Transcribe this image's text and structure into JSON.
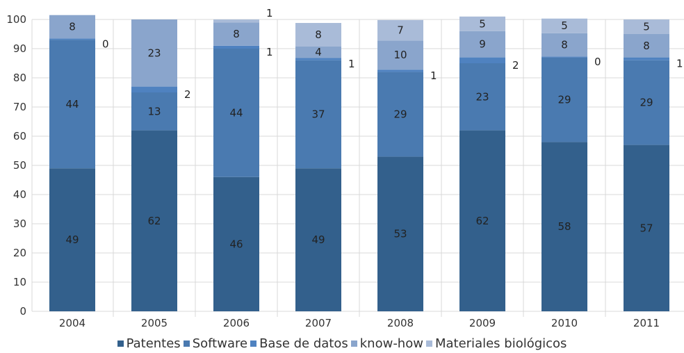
{
  "chart_data": {
    "type": "bar",
    "stacked": true,
    "categories": [
      "2004",
      "2005",
      "2006",
      "2007",
      "2008",
      "2009",
      "2010",
      "2011"
    ],
    "series": [
      {
        "name": "Patentes",
        "color": "#33608c",
        "values": [
          49,
          62,
          46,
          49,
          53,
          62,
          58,
          57
        ],
        "labels": [
          "49",
          "62",
          "46",
          "49",
          "53",
          "62",
          "58",
          "57"
        ]
      },
      {
        "name": "Software",
        "color": "#4a7ab0",
        "values": [
          44,
          13,
          44,
          37,
          29,
          23,
          29,
          29
        ],
        "labels": [
          "44",
          "13",
          "44",
          "37",
          "29",
          "23",
          "29",
          "29"
        ]
      },
      {
        "name": "Base de datos",
        "color": "#4f82c0",
        "values": [
          0.5,
          2,
          1,
          0.8,
          0.8,
          2,
          0.3,
          1
        ],
        "labels": [
          "0",
          "2",
          "1",
          "1",
          "1",
          "2",
          "0",
          "1"
        ]
      },
      {
        "name": "know-how",
        "color": "#8aa5cc",
        "values": [
          8,
          23,
          8,
          4,
          10,
          9,
          8,
          8
        ],
        "labels": [
          "8",
          "23",
          "8",
          "4",
          "10",
          "9",
          "8",
          "8"
        ]
      },
      {
        "name": "Materiales biológicos",
        "color": "#a9bbd8",
        "values": [
          0,
          0,
          1,
          8,
          7,
          5,
          5,
          5
        ],
        "labels": [
          "",
          "",
          "1",
          "8",
          "7",
          "5",
          "5",
          "5"
        ]
      }
    ],
    "ylim": [
      0,
      100
    ],
    "yticks": [
      0,
      10,
      20,
      30,
      40,
      50,
      60,
      70,
      80,
      90,
      100
    ],
    "ytick_labels": [
      "0",
      "10",
      "20",
      "30",
      "40",
      "50",
      "60",
      "70",
      "80",
      "90",
      "100"
    ],
    "grid": true,
    "legend_position": "bottom",
    "title": "",
    "xlabel": "",
    "ylabel": ""
  }
}
